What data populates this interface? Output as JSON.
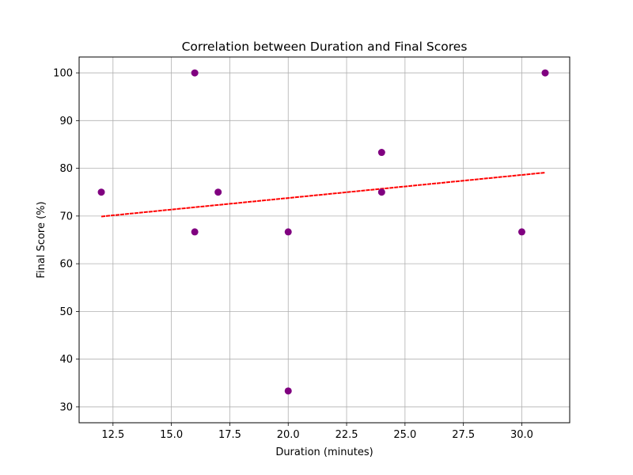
{
  "chart_data": {
    "type": "scatter",
    "title": "Correlation between Duration and Final Scores",
    "xlabel": "Duration (minutes)",
    "ylabel": "Final Score (%)",
    "xlim": [
      11.05,
      32.05
    ],
    "ylim": [
      26.67,
      103.33
    ],
    "x_ticks": [
      12.5,
      15.0,
      17.5,
      20.0,
      22.5,
      25.0,
      27.5,
      30.0
    ],
    "x_tick_labels": [
      "12.5",
      "15.0",
      "17.5",
      "20.0",
      "22.5",
      "25.0",
      "27.5",
      "30.0"
    ],
    "y_ticks": [
      30,
      40,
      50,
      60,
      70,
      80,
      90,
      100
    ],
    "y_tick_labels": [
      "30",
      "40",
      "50",
      "60",
      "70",
      "80",
      "90",
      "100"
    ],
    "grid": true,
    "series": [
      {
        "kind": "points",
        "color": "#800080",
        "points": [
          {
            "x": 12,
            "y": 75.0
          },
          {
            "x": 16,
            "y": 100.0
          },
          {
            "x": 16,
            "y": 66.67
          },
          {
            "x": 17,
            "y": 75.0
          },
          {
            "x": 20,
            "y": 66.67
          },
          {
            "x": 20,
            "y": 33.33
          },
          {
            "x": 24,
            "y": 83.33
          },
          {
            "x": 24,
            "y": 75.0
          },
          {
            "x": 30,
            "y": 66.67
          },
          {
            "x": 31,
            "y": 100.0
          }
        ]
      },
      {
        "kind": "trend-line",
        "color": "#ff0000",
        "points": [
          {
            "x": 12,
            "y": 69.9
          },
          {
            "x": 31,
            "y": 79.1
          }
        ]
      }
    ]
  }
}
